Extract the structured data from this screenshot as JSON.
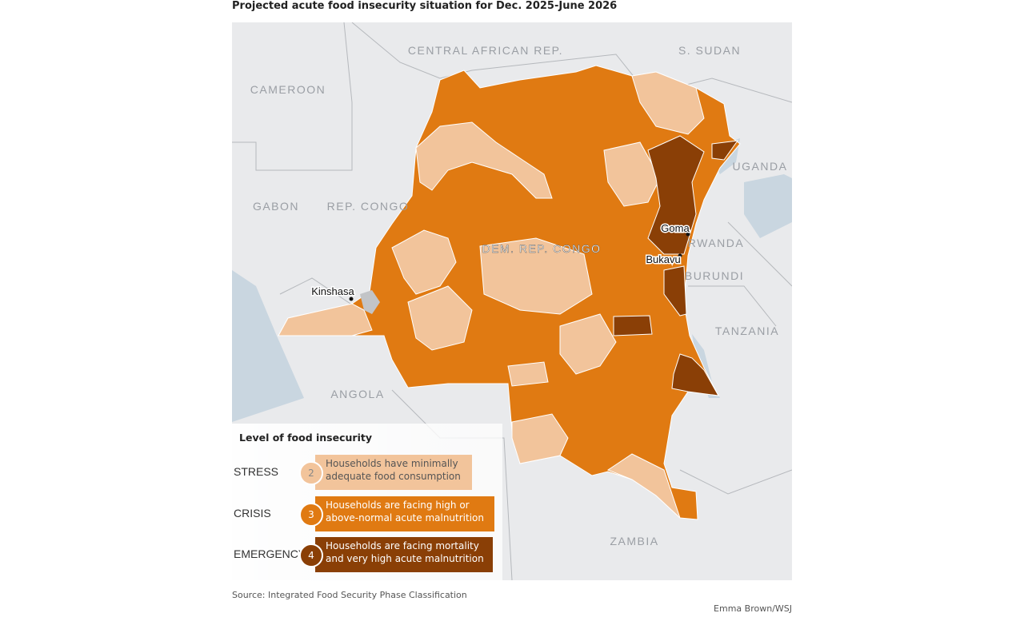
{
  "title": "Projected acute food insecurity situation for Dec. 2025-June 2026",
  "map": {
    "country_labels": [
      "CENTRAL AFRICAN REP.",
      "S. SUDAN",
      "CAMEROON",
      "UGANDA",
      "GABON",
      "REP. CONGO",
      "DEM. REP. CONGO",
      "RWANDA",
      "BURUNDI",
      "TANZANIA",
      "ANGOLA",
      "ZAMBIA"
    ],
    "cities": [
      "Kinshasa",
      "Goma",
      "Bukavu"
    ]
  },
  "legend": {
    "title": "Level of food insecurity",
    "items": [
      {
        "level": "STRESS",
        "phase": 2,
        "description": "Households have minimally adequate food consumption"
      },
      {
        "level": "CRISIS",
        "phase": 3,
        "description": "Households are facing high or above-normal acute malnutrition"
      },
      {
        "level": "EMERGENCY",
        "phase": 4,
        "description": "Households are facing mortality and very high acute malnutrition"
      }
    ]
  },
  "source": "Source: Integrated Food Security Phase Classification",
  "credit": "Emma Brown/WSJ"
}
